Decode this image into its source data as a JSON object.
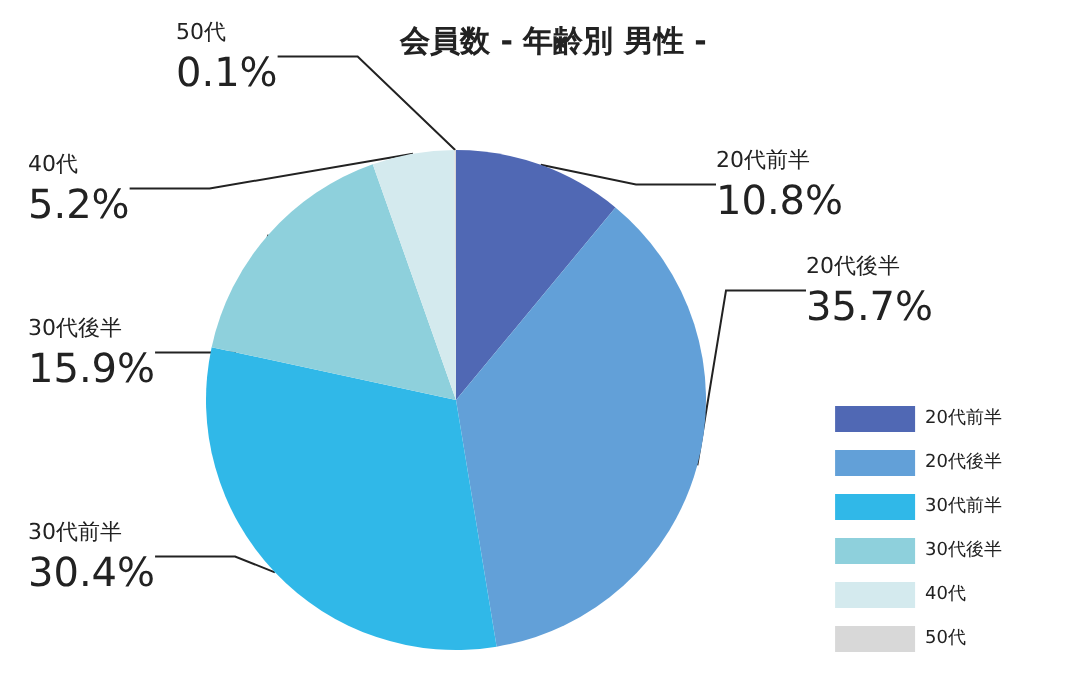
{
  "chart_data": {
    "type": "pie",
    "title": "会員数 - 年齢別 男性 -",
    "categories": [
      "20代前半",
      "20代後半",
      "30代前半",
      "30代後半",
      "40代",
      "50代"
    ],
    "values": [
      10.8,
      35.7,
      30.4,
      15.9,
      5.2,
      0.1
    ],
    "colors": [
      "#5068b4",
      "#62a0d8",
      "#30b8e8",
      "#8ed0dc",
      "#d4eaee",
      "#d8d8d8"
    ],
    "value_labels": [
      "10.8%",
      "35.7%",
      "30.4%",
      "15.9%",
      "5.2%",
      "0.1%"
    ],
    "legend": "right"
  }
}
